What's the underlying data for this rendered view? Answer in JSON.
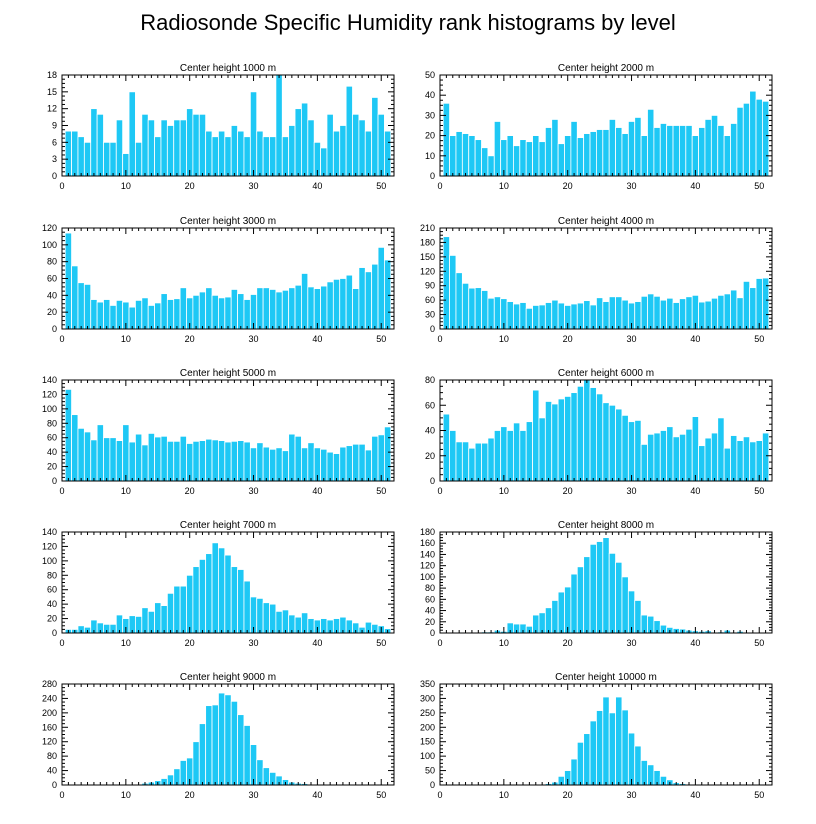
{
  "title": "Radiosonde Specific Humidity rank histograms by level",
  "colors": {
    "bar": "#1ec8f5",
    "bar_edge": "#ffffff",
    "axis": "#000000",
    "text": "#000000"
  },
  "chart_data": [
    {
      "type": "bar",
      "title": "Center height 1000 m",
      "xlim": [
        0,
        52
      ],
      "ylim": [
        0,
        18
      ],
      "xticks": [
        0,
        10,
        20,
        30,
        40,
        50
      ],
      "yticks": [
        0,
        3,
        6,
        9,
        12,
        15,
        18
      ],
      "categories": [
        1,
        2,
        3,
        4,
        5,
        6,
        7,
        8,
        9,
        10,
        11,
        12,
        13,
        14,
        15,
        16,
        17,
        18,
        19,
        20,
        21,
        22,
        23,
        24,
        25,
        26,
        27,
        28,
        29,
        30,
        31,
        32,
        33,
        34,
        35,
        36,
        37,
        38,
        39,
        40,
        41,
        42,
        43,
        44,
        45,
        46,
        47,
        48,
        49,
        50,
        51
      ],
      "values": [
        8,
        8,
        7,
        6,
        12,
        11,
        6,
        6,
        10,
        4,
        15,
        6,
        11,
        10,
        7,
        10,
        9,
        10,
        10,
        12,
        11,
        11,
        8,
        7,
        8,
        7,
        9,
        8,
        7,
        15,
        8,
        7,
        7,
        18,
        7,
        9,
        12,
        13,
        10,
        6,
        5,
        11,
        8,
        9,
        16,
        11,
        10,
        8,
        14,
        11,
        8
      ]
    },
    {
      "type": "bar",
      "title": "Center height 2000 m",
      "xlim": [
        0,
        52
      ],
      "ylim": [
        0,
        50
      ],
      "xticks": [
        0,
        10,
        20,
        30,
        40,
        50
      ],
      "yticks": [
        0,
        10,
        20,
        30,
        40,
        50
      ],
      "categories": [
        1,
        2,
        3,
        4,
        5,
        6,
        7,
        8,
        9,
        10,
        11,
        12,
        13,
        14,
        15,
        16,
        17,
        18,
        19,
        20,
        21,
        22,
        23,
        24,
        25,
        26,
        27,
        28,
        29,
        30,
        31,
        32,
        33,
        34,
        35,
        36,
        37,
        38,
        39,
        40,
        41,
        42,
        43,
        44,
        45,
        46,
        47,
        48,
        49,
        50,
        51
      ],
      "values": [
        36,
        20,
        22,
        21,
        20,
        18,
        14,
        10,
        27,
        18,
        20,
        15,
        18,
        17,
        20,
        17,
        24,
        28,
        16,
        20,
        27,
        19,
        21,
        22,
        23,
        23,
        28,
        24,
        21,
        27,
        29,
        20,
        33,
        24,
        26,
        25,
        25,
        25,
        25,
        20,
        24,
        28,
        30,
        25,
        20,
        26,
        34,
        36,
        42,
        38,
        37
      ]
    },
    {
      "type": "bar",
      "title": "Center height 3000 m",
      "xlim": [
        0,
        52
      ],
      "ylim": [
        0,
        120
      ],
      "xticks": [
        0,
        10,
        20,
        30,
        40,
        50
      ],
      "yticks": [
        0,
        20,
        40,
        60,
        80,
        100,
        120
      ],
      "categories": [
        1,
        2,
        3,
        4,
        5,
        6,
        7,
        8,
        9,
        10,
        11,
        12,
        13,
        14,
        15,
        16,
        17,
        18,
        19,
        20,
        21,
        22,
        23,
        24,
        25,
        26,
        27,
        28,
        29,
        30,
        31,
        32,
        33,
        34,
        35,
        36,
        37,
        38,
        39,
        40,
        41,
        42,
        43,
        44,
        45,
        46,
        47,
        48,
        49,
        50,
        51
      ],
      "values": [
        114,
        75,
        55,
        53,
        35,
        32,
        35,
        28,
        34,
        32,
        26,
        34,
        37,
        28,
        31,
        42,
        35,
        36,
        49,
        37,
        40,
        44,
        49,
        40,
        37,
        38,
        47,
        42,
        35,
        41,
        49,
        49,
        47,
        44,
        46,
        49,
        52,
        66,
        50,
        48,
        51,
        56,
        59,
        60,
        64,
        48,
        73,
        68,
        77,
        97,
        82
      ]
    },
    {
      "type": "bar",
      "title": "Center height 4000 m",
      "xlim": [
        0,
        52
      ],
      "ylim": [
        0,
        210
      ],
      "xticks": [
        0,
        10,
        20,
        30,
        40,
        50
      ],
      "yticks": [
        0,
        30,
        60,
        90,
        120,
        150,
        180,
        210
      ],
      "categories": [
        1,
        2,
        3,
        4,
        5,
        6,
        7,
        8,
        9,
        10,
        11,
        12,
        13,
        14,
        15,
        16,
        17,
        18,
        19,
        20,
        21,
        22,
        23,
        24,
        25,
        26,
        27,
        28,
        29,
        30,
        31,
        32,
        33,
        34,
        35,
        36,
        37,
        38,
        39,
        40,
        41,
        42,
        43,
        44,
        45,
        46,
        47,
        48,
        49,
        50,
        51
      ],
      "values": [
        192,
        153,
        117,
        95,
        85,
        86,
        80,
        64,
        67,
        63,
        57,
        52,
        55,
        43,
        49,
        50,
        55,
        60,
        54,
        49,
        52,
        54,
        59,
        50,
        65,
        57,
        67,
        67,
        60,
        54,
        57,
        68,
        73,
        68,
        60,
        64,
        55,
        63,
        67,
        70,
        56,
        58,
        64,
        70,
        73,
        81,
        65,
        99,
        86,
        105,
        106
      ]
    },
    {
      "type": "bar",
      "title": "Center height 5000 m",
      "xlim": [
        0,
        52
      ],
      "ylim": [
        0,
        140
      ],
      "xticks": [
        0,
        10,
        20,
        30,
        40,
        50
      ],
      "yticks": [
        0,
        20,
        40,
        60,
        80,
        100,
        120,
        140
      ],
      "categories": [
        1,
        2,
        3,
        4,
        5,
        6,
        7,
        8,
        9,
        10,
        11,
        12,
        13,
        14,
        15,
        16,
        17,
        18,
        19,
        20,
        21,
        22,
        23,
        24,
        25,
        26,
        27,
        28,
        29,
        30,
        31,
        32,
        33,
        34,
        35,
        36,
        37,
        38,
        39,
        40,
        41,
        42,
        43,
        44,
        45,
        46,
        47,
        48,
        49,
        50,
        51
      ],
      "values": [
        127,
        92,
        73,
        68,
        57,
        78,
        60,
        60,
        56,
        78,
        54,
        65,
        50,
        66,
        61,
        62,
        55,
        55,
        62,
        52,
        55,
        56,
        58,
        57,
        56,
        54,
        55,
        56,
        54,
        46,
        53,
        47,
        44,
        46,
        42,
        65,
        62,
        46,
        53,
        46,
        44,
        40,
        38,
        47,
        49,
        51,
        51,
        43,
        62,
        64,
        75
      ]
    },
    {
      "type": "bar",
      "title": "Center height 6000 m",
      "xlim": [
        0,
        52
      ],
      "ylim": [
        0,
        80
      ],
      "xticks": [
        0,
        10,
        20,
        30,
        40,
        50
      ],
      "yticks": [
        0,
        20,
        40,
        60,
        80
      ],
      "categories": [
        1,
        2,
        3,
        4,
        5,
        6,
        7,
        8,
        9,
        10,
        11,
        12,
        13,
        14,
        15,
        16,
        17,
        18,
        19,
        20,
        21,
        22,
        23,
        24,
        25,
        26,
        27,
        28,
        29,
        30,
        31,
        32,
        33,
        34,
        35,
        36,
        37,
        38,
        39,
        40,
        41,
        42,
        43,
        44,
        45,
        46,
        47,
        48,
        49,
        50,
        51
      ],
      "values": [
        53,
        40,
        31,
        31,
        26,
        30,
        30,
        34,
        40,
        43,
        40,
        46,
        40,
        47,
        72,
        50,
        63,
        61,
        65,
        67,
        70,
        75,
        80,
        74,
        69,
        62,
        60,
        57,
        52,
        47,
        48,
        29,
        37,
        38,
        40,
        43,
        35,
        37,
        41,
        51,
        28,
        34,
        38,
        50,
        26,
        36,
        32,
        35,
        31,
        32,
        38
      ]
    },
    {
      "type": "bar",
      "title": "Center height 7000 m",
      "xlim": [
        0,
        52
      ],
      "ylim": [
        0,
        140
      ],
      "xticks": [
        0,
        10,
        20,
        30,
        40,
        50
      ],
      "yticks": [
        0,
        20,
        40,
        60,
        80,
        100,
        120,
        140
      ],
      "categories": [
        1,
        2,
        3,
        4,
        5,
        6,
        7,
        8,
        9,
        10,
        11,
        12,
        13,
        14,
        15,
        16,
        17,
        18,
        19,
        20,
        21,
        22,
        23,
        24,
        25,
        26,
        27,
        28,
        29,
        30,
        31,
        32,
        33,
        34,
        35,
        36,
        37,
        38,
        39,
        40,
        41,
        42,
        43,
        44,
        45,
        46,
        47,
        48,
        49,
        50,
        51
      ],
      "values": [
        5,
        5,
        10,
        8,
        18,
        14,
        12,
        12,
        25,
        20,
        24,
        23,
        35,
        30,
        42,
        38,
        55,
        65,
        65,
        80,
        92,
        102,
        110,
        125,
        118,
        108,
        92,
        88,
        72,
        50,
        48,
        42,
        40,
        30,
        32,
        25,
        22,
        28,
        20,
        18,
        20,
        18,
        20,
        22,
        18,
        14,
        8,
        15,
        12,
        10,
        6
      ]
    },
    {
      "type": "bar",
      "title": "Center height 8000 m",
      "xlim": [
        0,
        52
      ],
      "ylim": [
        0,
        180
      ],
      "xticks": [
        0,
        10,
        20,
        30,
        40,
        50
      ],
      "yticks": [
        0,
        20,
        40,
        60,
        80,
        100,
        120,
        140,
        160,
        180
      ],
      "categories": [
        1,
        2,
        3,
        4,
        5,
        6,
        7,
        8,
        9,
        10,
        11,
        12,
        13,
        14,
        15,
        16,
        17,
        18,
        19,
        20,
        21,
        22,
        23,
        24,
        25,
        26,
        27,
        28,
        29,
        30,
        31,
        32,
        33,
        34,
        35,
        36,
        37,
        38,
        39,
        40,
        41,
        42,
        43,
        44,
        45,
        46,
        47,
        48,
        49,
        50,
        51
      ],
      "values": [
        0,
        0,
        1,
        0,
        0,
        0,
        2,
        2,
        5,
        3,
        18,
        16,
        16,
        12,
        32,
        36,
        45,
        58,
        73,
        82,
        105,
        118,
        136,
        158,
        163,
        170,
        142,
        126,
        100,
        75,
        58,
        32,
        30,
        22,
        14,
        10,
        8,
        7,
        5,
        4,
        3,
        4,
        1,
        2,
        5,
        1,
        3,
        1,
        0,
        0,
        0
      ]
    },
    {
      "type": "bar",
      "title": "Center height 9000 m",
      "xlim": [
        0,
        52
      ],
      "ylim": [
        0,
        280
      ],
      "xticks": [
        0,
        10,
        20,
        30,
        40,
        50
      ],
      "yticks": [
        0,
        40,
        80,
        120,
        160,
        200,
        240,
        280
      ],
      "categories": [
        1,
        2,
        3,
        4,
        5,
        6,
        7,
        8,
        9,
        10,
        11,
        12,
        13,
        14,
        15,
        16,
        17,
        18,
        19,
        20,
        21,
        22,
        23,
        24,
        25,
        26,
        27,
        28,
        29,
        30,
        31,
        32,
        33,
        34,
        35,
        36,
        37,
        38,
        39,
        40,
        41,
        42,
        43,
        44,
        45,
        46,
        47,
        48,
        49,
        50,
        51
      ],
      "values": [
        0,
        0,
        0,
        0,
        0,
        0,
        0,
        0,
        0,
        1,
        0,
        2,
        5,
        8,
        12,
        18,
        28,
        45,
        68,
        75,
        120,
        170,
        220,
        222,
        255,
        250,
        232,
        195,
        165,
        112,
        70,
        48,
        35,
        25,
        15,
        8,
        5,
        4,
        2,
        2,
        1,
        1,
        0,
        0,
        0,
        0,
        0,
        0,
        0,
        0,
        0
      ]
    },
    {
      "type": "bar",
      "title": "Center height 10000 m",
      "xlim": [
        0,
        52
      ],
      "ylim": [
        0,
        350
      ],
      "xticks": [
        0,
        10,
        20,
        30,
        40,
        50
      ],
      "yticks": [
        0,
        50,
        100,
        150,
        200,
        250,
        300,
        350
      ],
      "categories": [
        1,
        2,
        3,
        4,
        5,
        6,
        7,
        8,
        9,
        10,
        11,
        12,
        13,
        14,
        15,
        16,
        17,
        18,
        19,
        20,
        21,
        22,
        23,
        24,
        25,
        26,
        27,
        28,
        29,
        30,
        31,
        32,
        33,
        34,
        35,
        36,
        37,
        38,
        39,
        40,
        41,
        42,
        43,
        44,
        45,
        46,
        47,
        48,
        49,
        50,
        51
      ],
      "values": [
        0,
        0,
        0,
        0,
        0,
        0,
        0,
        0,
        0,
        0,
        0,
        0,
        0,
        0,
        1,
        2,
        5,
        10,
        30,
        50,
        90,
        148,
        178,
        222,
        258,
        305,
        250,
        305,
        260,
        180,
        135,
        85,
        70,
        50,
        30,
        18,
        8,
        5,
        2,
        2,
        1,
        0,
        0,
        0,
        0,
        0,
        0,
        0,
        0,
        0,
        0
      ]
    }
  ]
}
